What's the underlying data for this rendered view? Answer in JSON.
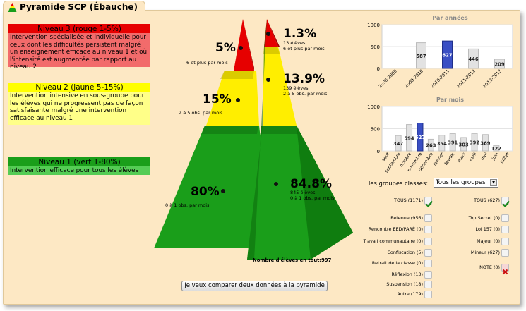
{
  "tab": {
    "title": "Pyramide SCP (Ébauche)",
    "icon": "pyramid-icon"
  },
  "levels": [
    {
      "title": "Niveau 3 (rouge 1-5%)",
      "desc": "Intervention spécialisée et individuelle pour ceux dont les difficultés persistent malgré un enseignement efficace au niveau 1 et où l'intensité est augmentée par rapport au niveau 2",
      "title_color": "#e60000",
      "desc_color": "#f26b6b"
    },
    {
      "title": "Niveau 2 (jaune 5-15%)",
      "desc": "Intervention intensive en sous-groupe pour les élèves qui ne progressent pas de façon satisfaisante malgré une intervention efficace au niveau 1",
      "title_color": "#ffff00",
      "desc_color": "#ffff88"
    },
    {
      "title": "Niveau 1 (vert 1-80%)",
      "desc": "Intervention efficace pour tous les élèves",
      "title_color": "#1a9e1a",
      "desc_color": "#55cc55"
    }
  ],
  "left_pyramid": {
    "red": {
      "pct": "5%",
      "sub": "6 et plus par mois"
    },
    "yellow": {
      "pct": "15%",
      "sub": "2 à 5 obs. par mois"
    },
    "green": {
      "pct": "80%",
      "sub": "0 à 1 obs. par mois"
    }
  },
  "right_pyramid": {
    "red": {
      "pct": "1.3%",
      "sub1": "13 élèves",
      "sub2": "6 et plus par mois"
    },
    "yellow": {
      "pct": "13.9%",
      "sub1": "139 élèves",
      "sub2": "2 à 5 obs. par mois"
    },
    "green": {
      "pct": "84.8%",
      "sub1": "845 élèves",
      "sub2": "0 à 1 obs. par mois"
    },
    "total": "Nombre d'élèves en tout:997"
  },
  "colors": {
    "red": "#e60000",
    "yellow": "#ffee00",
    "green": "#1a9e1a",
    "panel": "#fde8c4"
  },
  "chart_data": [
    {
      "type": "bar",
      "title": "Par années",
      "categories": [
        "2008-2009",
        "2009-2010",
        "2010-2011",
        "2011-2012",
        "2012-2013"
      ],
      "values": [
        0,
        587,
        627,
        446,
        209
      ],
      "labels": [
        "",
        "587",
        "627",
        "446",
        "209"
      ],
      "highlight_index": 2,
      "ylim": [
        0,
        1000
      ],
      "yticks": [
        "0",
        "500",
        "1000"
      ]
    },
    {
      "type": "bar",
      "title": "Par mois",
      "categories": [
        "août",
        "septembre",
        "octobre",
        "novembre",
        "décembre",
        "janvier",
        "février",
        "mars",
        "avril",
        "mai",
        "juin",
        "juillet"
      ],
      "values": [
        0,
        347,
        594,
        627,
        263,
        354,
        391,
        303,
        392,
        369,
        122,
        0
      ],
      "labels": [
        "",
        "347",
        "594",
        "627",
        "263",
        "354",
        "391",
        "303",
        "392",
        "369",
        "122",
        ""
      ],
      "highlight_index": 3,
      "ylim": [
        0,
        1000
      ],
      "yticks": [
        "0",
        "500",
        "1000"
      ]
    }
  ],
  "groups": {
    "label": "les groupes classes:",
    "select_value": "Tous les groupes",
    "left": [
      {
        "label": "TOUS (1171)",
        "state": "checked"
      },
      {
        "label": "Retenue (956)",
        "state": "empty"
      },
      {
        "label": "Rencontre EED/PARÉ (0)",
        "state": "empty"
      },
      {
        "label": "Travail communautaire (0)",
        "state": "empty"
      },
      {
        "label": "Confiscation (5)",
        "state": "empty"
      },
      {
        "label": "Retrait de la classe (0)",
        "state": "empty"
      },
      {
        "label": "Réflexion (13)",
        "state": "empty"
      },
      {
        "label": "Suspension (18)",
        "state": "empty"
      },
      {
        "label": "Autre (179)",
        "state": "empty"
      }
    ],
    "right": [
      {
        "label": "TOUS (627)",
        "state": "checked"
      },
      {
        "label": "Top Secret (0)",
        "state": "empty"
      },
      {
        "label": "Loi 157 (0)",
        "state": "empty"
      },
      {
        "label": "Majeur (0)",
        "state": "empty"
      },
      {
        "label": "Mineur (627)",
        "state": "empty"
      },
      {
        "label": "NOTE (0)",
        "state": "x"
      }
    ]
  },
  "compare_button": "Je veux comparer deux données à la pyramide"
}
